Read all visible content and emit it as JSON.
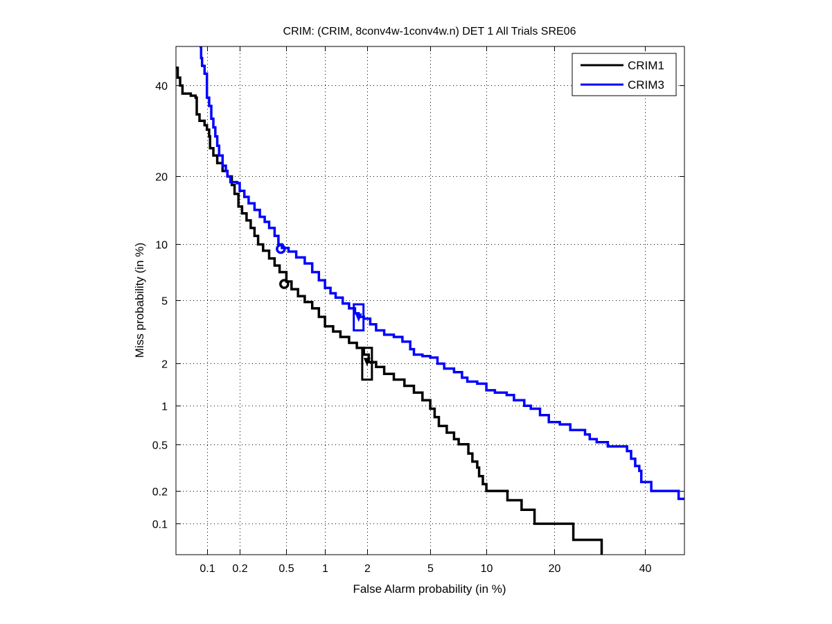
{
  "chart_data": {
    "type": "line",
    "title": "CRIM: (CRIM, 8conv4w-1conv4w.n) DET 1 All Trials SRE06",
    "xlabel": "False Alarm probability (in %)",
    "ylabel": "Miss probability (in %)",
    "xscale": "probit",
    "yscale": "probit",
    "xlim": [
      0.05,
      50
    ],
    "ylim": [
      0.05,
      50
    ],
    "grid": true,
    "legend_position": "top-right",
    "xticks": [
      0.1,
      0.2,
      0.5,
      1,
      2,
      5,
      10,
      20,
      40
    ],
    "xtick_labels": [
      "0.1",
      "0.2",
      "0.5",
      "1",
      "2",
      "5",
      "10",
      "20",
      "40"
    ],
    "yticks": [
      0.1,
      0.2,
      0.5,
      1,
      2,
      5,
      10,
      20,
      40
    ],
    "ytick_labels": [
      "0.1",
      "0.2",
      "0.5",
      "1",
      "2",
      "5",
      "10",
      "20",
      "40"
    ],
    "series": [
      {
        "name": "CRIM1",
        "color": "#000000",
        "points": [
          [
            0.05,
            44.5
          ],
          [
            0.052,
            42
          ],
          [
            0.055,
            40
          ],
          [
            0.058,
            38
          ],
          [
            0.07,
            37.5
          ],
          [
            0.078,
            37
          ],
          [
            0.08,
            33
          ],
          [
            0.085,
            31.5
          ],
          [
            0.095,
            30.5
          ],
          [
            0.1,
            29.5
          ],
          [
            0.105,
            28
          ],
          [
            0.107,
            25.5
          ],
          [
            0.115,
            24
          ],
          [
            0.125,
            22.5
          ],
          [
            0.14,
            21
          ],
          [
            0.155,
            20
          ],
          [
            0.17,
            18.5
          ],
          [
            0.18,
            17
          ],
          [
            0.195,
            15
          ],
          [
            0.21,
            14
          ],
          [
            0.23,
            13
          ],
          [
            0.25,
            12
          ],
          [
            0.27,
            11
          ],
          [
            0.29,
            10
          ],
          [
            0.32,
            9.3
          ],
          [
            0.36,
            8.5
          ],
          [
            0.4,
            7.8
          ],
          [
            0.44,
            7.2
          ],
          [
            0.5,
            6.4
          ],
          [
            0.55,
            5.8
          ],
          [
            0.62,
            5.3
          ],
          [
            0.7,
            4.9
          ],
          [
            0.8,
            4.5
          ],
          [
            0.9,
            4.0
          ],
          [
            1.0,
            3.5
          ],
          [
            1.15,
            3.25
          ],
          [
            1.3,
            3.0
          ],
          [
            1.5,
            2.75
          ],
          [
            1.7,
            2.55
          ],
          [
            1.9,
            2.3
          ],
          [
            2.05,
            2.05
          ],
          [
            2.3,
            1.9
          ],
          [
            2.6,
            1.7
          ],
          [
            3.0,
            1.55
          ],
          [
            3.5,
            1.4
          ],
          [
            4.0,
            1.25
          ],
          [
            4.5,
            1.1
          ],
          [
            5.0,
            0.95
          ],
          [
            5.3,
            0.82
          ],
          [
            5.6,
            0.7
          ],
          [
            6.2,
            0.62
          ],
          [
            6.8,
            0.55
          ],
          [
            7.2,
            0.5
          ],
          [
            8.0,
            0.5
          ],
          [
            8.1,
            0.42
          ],
          [
            8.5,
            0.36
          ],
          [
            9.0,
            0.32
          ],
          [
            9.2,
            0.27
          ],
          [
            9.6,
            0.23
          ],
          [
            10.0,
            0.2
          ],
          [
            12.5,
            0.2
          ],
          [
            12.6,
            0.165
          ],
          [
            14.5,
            0.165
          ],
          [
            14.6,
            0.135
          ],
          [
            16.5,
            0.135
          ],
          [
            16.6,
            0.1
          ],
          [
            23.5,
            0.1
          ],
          [
            23.6,
            0.07
          ],
          [
            29.5,
            0.07
          ],
          [
            29.6,
            0.05
          ]
        ],
        "marker_circle": [
          0.48,
          6.2
        ],
        "marker_box": {
          "x": 2.0,
          "y": 2.05,
          "y_low": 1.55,
          "y_high": 2.55
        }
      },
      {
        "name": "CRIM3",
        "color": "#0000ff",
        "points": [
          [
            0.085,
            50
          ],
          [
            0.088,
            47
          ],
          [
            0.09,
            45
          ],
          [
            0.095,
            43
          ],
          [
            0.1,
            37
          ],
          [
            0.105,
            35
          ],
          [
            0.11,
            32
          ],
          [
            0.115,
            30
          ],
          [
            0.12,
            28
          ],
          [
            0.125,
            26
          ],
          [
            0.13,
            24
          ],
          [
            0.14,
            22
          ],
          [
            0.15,
            21
          ],
          [
            0.155,
            20
          ],
          [
            0.165,
            19
          ],
          [
            0.19,
            18.8
          ],
          [
            0.2,
            17.5
          ],
          [
            0.22,
            16.5
          ],
          [
            0.24,
            15.5
          ],
          [
            0.27,
            14.5
          ],
          [
            0.3,
            13.5
          ],
          [
            0.33,
            12.8
          ],
          [
            0.36,
            12
          ],
          [
            0.4,
            11
          ],
          [
            0.43,
            10
          ],
          [
            0.46,
            9.6
          ],
          [
            0.52,
            9.2
          ],
          [
            0.6,
            8.6
          ],
          [
            0.7,
            8.0
          ],
          [
            0.8,
            7.2
          ],
          [
            0.9,
            6.5
          ],
          [
            1.0,
            5.9
          ],
          [
            1.1,
            5.5
          ],
          [
            1.2,
            5.2
          ],
          [
            1.35,
            4.8
          ],
          [
            1.5,
            4.5
          ],
          [
            1.65,
            4.2
          ],
          [
            1.75,
            4.0
          ],
          [
            1.9,
            3.9
          ],
          [
            2.1,
            3.6
          ],
          [
            2.3,
            3.3
          ],
          [
            2.6,
            3.1
          ],
          [
            3.0,
            3.0
          ],
          [
            3.4,
            2.8
          ],
          [
            3.8,
            2.5
          ],
          [
            4.0,
            2.3
          ],
          [
            4.5,
            2.25
          ],
          [
            5.0,
            2.2
          ],
          [
            5.5,
            2.0
          ],
          [
            6.0,
            1.85
          ],
          [
            6.8,
            1.75
          ],
          [
            7.5,
            1.6
          ],
          [
            8.0,
            1.5
          ],
          [
            9.0,
            1.45
          ],
          [
            10.0,
            1.3
          ],
          [
            11.0,
            1.25
          ],
          [
            12.5,
            1.2
          ],
          [
            13.5,
            1.1
          ],
          [
            15.0,
            1.0
          ],
          [
            16.0,
            0.95
          ],
          [
            17.5,
            0.85
          ],
          [
            19.0,
            0.75
          ],
          [
            21.0,
            0.72
          ],
          [
            23.0,
            0.65
          ],
          [
            26.0,
            0.6
          ],
          [
            27.0,
            0.55
          ],
          [
            28.5,
            0.52
          ],
          [
            31.0,
            0.48
          ],
          [
            35.0,
            0.48
          ],
          [
            35.5,
            0.44
          ],
          [
            36.5,
            0.38
          ],
          [
            37.5,
            0.33
          ],
          [
            38.5,
            0.3
          ],
          [
            39.0,
            0.24
          ],
          [
            41.0,
            0.24
          ],
          [
            41.5,
            0.2
          ],
          [
            48.0,
            0.2
          ],
          [
            48.5,
            0.17
          ],
          [
            50.0,
            0.17
          ]
        ],
        "marker_circle": [
          0.45,
          9.5
        ],
        "marker_box": {
          "x": 1.75,
          "y": 3.95,
          "y_low": 3.3,
          "y_high": 4.75
        }
      }
    ]
  }
}
